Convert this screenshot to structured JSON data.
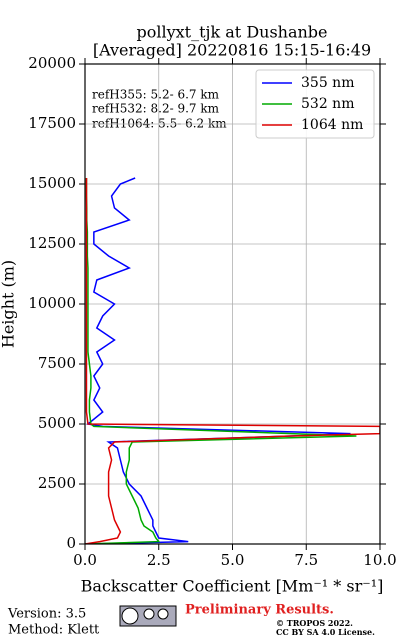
{
  "chart_data": {
    "type": "line",
    "title": "pollyxt_tjk at Dushanbe",
    "subtitle": "[Averaged] 20220816 15:15-16:49",
    "xlabel": "Backscatter Coefficient [Mm⁻¹ * sr⁻¹]",
    "ylabel": "Height (m)",
    "y": [
      0,
      100,
      250,
      500,
      750,
      1000,
      1500,
      2000,
      2500,
      3000,
      3500,
      4000,
      4250,
      4500,
      4600,
      4900,
      5000,
      5500,
      6000,
      6500,
      7000,
      7500,
      8000,
      8500,
      9000,
      9500,
      10000,
      10500,
      11000,
      11500,
      12000,
      12500,
      13000,
      13500,
      14000,
      14500,
      15000,
      15250
    ],
    "series": [
      {
        "name": "355 nm",
        "color": "#0000ff",
        "values": [
          0.1,
          3.5,
          2.5,
          2.4,
          2.3,
          2.3,
          2.1,
          1.9,
          1.5,
          1.3,
          1.2,
          1.1,
          0.8,
          7.0,
          9.0,
          0.6,
          0.1,
          0.6,
          0.3,
          0.5,
          0.3,
          0.6,
          0.4,
          1.0,
          0.4,
          0.6,
          1.0,
          0.3,
          0.4,
          1.5,
          0.8,
          0.3,
          0.3,
          1.5,
          1.0,
          0.9,
          1.2,
          1.7
        ]
      },
      {
        "name": "532 nm",
        "color": "#00aa00",
        "values": [
          0,
          2.5,
          2.4,
          2.3,
          2.0,
          1.9,
          1.8,
          1.6,
          1.4,
          1.4,
          1.5,
          1.5,
          1.6,
          9.2,
          7.0,
          0.3,
          0.2,
          0.15,
          0.15,
          0.2,
          0.2,
          0.15,
          0.1,
          0.1,
          0.1,
          0.1,
          0.1,
          0.1,
          0.1,
          0.1,
          0.08,
          0.08,
          0.08,
          0.06,
          0.06,
          0.05,
          0.05,
          0.05
        ]
      },
      {
        "name": "1064 nm",
        "color": "#dd0000",
        "values": [
          0,
          0.5,
          1.1,
          1.2,
          1.1,
          1.0,
          0.9,
          0.8,
          0.8,
          0.8,
          0.9,
          0.8,
          1.0,
          7.0,
          10,
          10,
          0.1,
          0.05,
          0.05,
          0.05,
          0.05,
          0.05,
          0.05,
          0.05,
          0.05,
          0.05,
          0.05,
          0.05,
          0.05,
          0.05,
          0.05,
          0.05,
          0.05,
          0.05,
          0.05,
          0.05,
          0.05,
          0.05
        ]
      }
    ],
    "xlim": [
      0,
      10
    ],
    "xticks": [
      {
        "value": 0,
        "label": "0.0"
      },
      {
        "value": 2.5,
        "label": "2.5"
      },
      {
        "value": 5,
        "label": "5.0"
      },
      {
        "value": 7.5,
        "label": "7.5"
      },
      {
        "value": 10,
        "label": "10.0"
      }
    ],
    "ylim": [
      0,
      20000
    ],
    "yticks": [
      0,
      2500,
      5000,
      7500,
      10000,
      12500,
      15000,
      17500,
      20000
    ],
    "grid": true,
    "legend": "upper right",
    "annotations": [
      "refH355:  5.2- 6.7 km",
      "refH532:  8.2- 9.7 km",
      "refH1064:  5.5- 6.2 km"
    ],
    "footer": {
      "version": "Version: 3.5",
      "method": "Method: Klett",
      "preliminary": "Preliminary Results.",
      "license_1": "© TROPOS 2022.",
      "license_2": "CC BY SA 4.0 License."
    }
  }
}
